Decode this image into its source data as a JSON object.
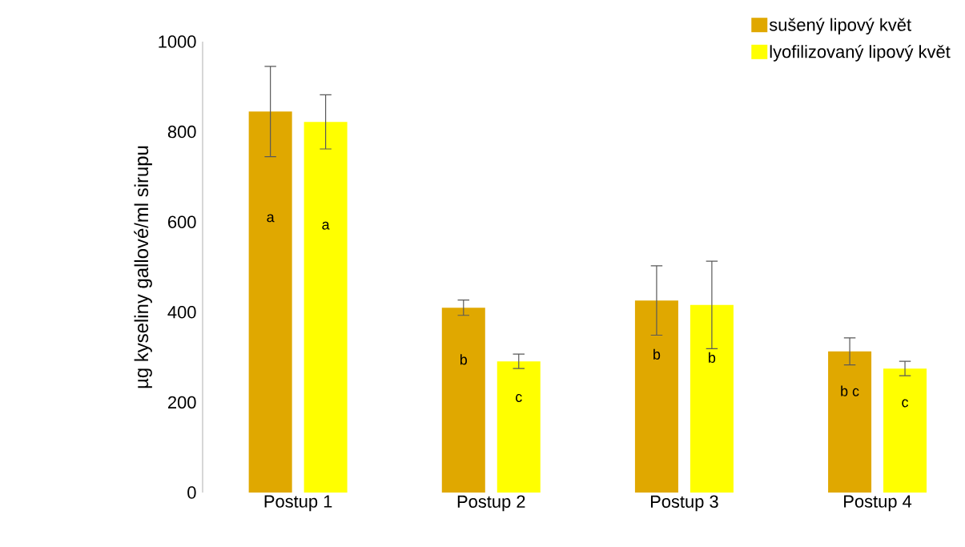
{
  "chart_data": {
    "type": "bar",
    "ylabel": "µg kyseliny gallové/ml sirupu",
    "categories": [
      "Postup 1",
      "Postup 2",
      "Postup 3",
      "Postup 4"
    ],
    "series": [
      {
        "name": "sušený lipový květ",
        "color": "#e0a800",
        "values": [
          845,
          410,
          426,
          313
        ],
        "errors": [
          100,
          17,
          77,
          30
        ],
        "value_labels": [
          "a",
          "b",
          "b",
          "b c"
        ]
      },
      {
        "name": "lyofilizovaný lipový květ",
        "color": "#ffff00",
        "values": [
          822,
          291,
          416,
          275
        ],
        "errors": [
          60,
          16,
          97,
          16
        ],
        "value_labels": [
          "a",
          "c",
          "b",
          "c"
        ]
      }
    ],
    "ylim": [
      0,
      1000
    ],
    "yticks": [
      0,
      200,
      400,
      600,
      800,
      1000
    ],
    "legend": "top right"
  }
}
